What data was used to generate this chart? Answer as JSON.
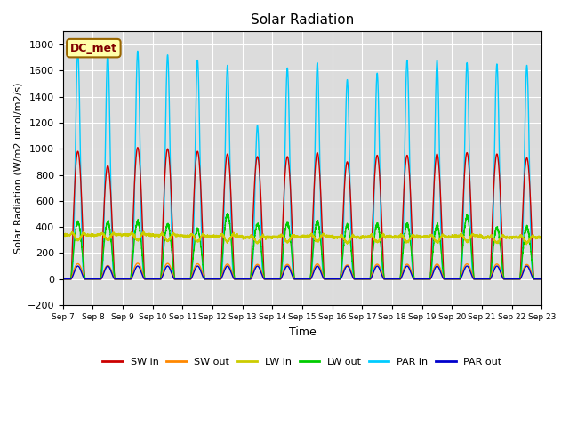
{
  "title": "Solar Radiation",
  "xlabel": "Time",
  "ylabel": "Solar Radiation (W/m2 umol/m2/s)",
  "ylim": [
    -200,
    1900
  ],
  "yticks": [
    -200,
    0,
    200,
    400,
    600,
    800,
    1000,
    1200,
    1400,
    1600,
    1800
  ],
  "bg_color": "#dcdcdc",
  "series": {
    "SW_in": {
      "color": "#cc0000",
      "lw": 1.0
    },
    "SW_out": {
      "color": "#ff8800",
      "lw": 1.0
    },
    "LW_in": {
      "color": "#cccc00",
      "lw": 1.0
    },
    "LW_out": {
      "color": "#00cc00",
      "lw": 1.0
    },
    "PAR_in": {
      "color": "#00ccff",
      "lw": 1.0
    },
    "PAR_out": {
      "color": "#0000cc",
      "lw": 1.0
    }
  },
  "legend_labels": [
    "SW in",
    "SW out",
    "LW in",
    "LW out",
    "PAR in",
    "PAR out"
  ],
  "legend_colors": [
    "#cc0000",
    "#ff8800",
    "#cccc00",
    "#00cc00",
    "#00ccff",
    "#0000cc"
  ],
  "annotation_text": "DC_met",
  "n_days": 16,
  "points_per_day": 288,
  "start_day": 7
}
